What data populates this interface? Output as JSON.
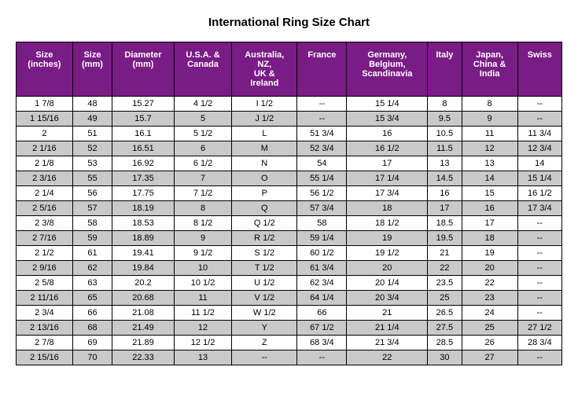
{
  "title": "International Ring Size Chart",
  "header_bg": "#7a1c85",
  "header_fg": "#ffffff",
  "stripe_bg": "#c9c9c9",
  "columns": [
    "Size (inches)",
    "Size (mm)",
    "Diameter (mm)",
    "U.S.A. & Canada",
    "Australia, NZ, UK & Ireland",
    "France",
    "Germany, Belgium, Scandinavia",
    "Italy",
    "Japan, China & India",
    "Swiss"
  ],
  "rows": [
    [
      "1  7/8",
      "48",
      "15.27",
      "4  1/2",
      "I  1/2",
      "--",
      "15  1/4",
      "8",
      "8",
      "--"
    ],
    [
      "1 15/16",
      "49",
      "15.7",
      "5",
      "J  1/2",
      "--",
      "15  3/4",
      "9.5",
      "9",
      "--"
    ],
    [
      "2",
      "51",
      "16.1",
      "5  1/2",
      "L",
      "51  3/4",
      "16",
      "10.5",
      "11",
      "11  3/4"
    ],
    [
      "2  1/16",
      "52",
      "16.51",
      "6",
      "M",
      "52  3/4",
      "16  1/2",
      "11.5",
      "12",
      "12  3/4"
    ],
    [
      "2  1/8",
      "53",
      "16.92",
      "6  1/2",
      "N",
      "54",
      "17",
      "13",
      "13",
      "14"
    ],
    [
      "2  3/16",
      "55",
      "17.35",
      "7",
      "O",
      "55  1/4",
      "17  1/4",
      "14.5",
      "14",
      "15  1/4"
    ],
    [
      "2  1/4",
      "56",
      "17.75",
      "7  1/2",
      "P",
      "56  1/2",
      "17  3/4",
      "16",
      "15",
      "16  1/2"
    ],
    [
      "2  5/16",
      "57",
      "18.19",
      "8",
      "Q",
      "57  3/4",
      "18",
      "17",
      "16",
      "17  3/4"
    ],
    [
      "2  3/8",
      "58",
      "18.53",
      "8  1/2",
      "Q  1/2",
      "58",
      "18  1/2",
      "18.5",
      "17",
      "--"
    ],
    [
      "2  7/16",
      "59",
      "18.89",
      "9",
      "R  1/2",
      "59  1/4",
      "19",
      "19.5",
      "18",
      "--"
    ],
    [
      "2  1/2",
      "61",
      "19.41",
      "9  1/2",
      "S  1/2",
      "60  1/2",
      "19  1/2",
      "21",
      "19",
      "--"
    ],
    [
      "2  9/16",
      "62",
      "19.84",
      "10",
      "T  1/2",
      "61  3/4",
      "20",
      "22",
      "20",
      "--"
    ],
    [
      "2  5/8",
      "63",
      "20.2",
      "10  1/2",
      "U  1/2",
      "62  3/4",
      "20  1/4",
      "23.5",
      "22",
      "--"
    ],
    [
      "2 11/16",
      "65",
      "20.68",
      "11",
      "V  1/2",
      "64  1/4",
      "20  3/4",
      "25",
      "23",
      "--"
    ],
    [
      "2  3/4",
      "66",
      "21.08",
      "11  1/2",
      "W  1/2",
      "66",
      "21",
      "26.5",
      "24",
      "--"
    ],
    [
      "2 13/16",
      "68",
      "21.49",
      "12",
      "Y",
      "67  1/2",
      "21  1/4",
      "27.5",
      "25",
      "27  1/2"
    ],
    [
      "2  7/8",
      "69",
      "21.89",
      "12  1/2",
      "Z",
      "68  3/4",
      "21  3/4",
      "28.5",
      "26",
      "28  3/4"
    ],
    [
      "2 15/16",
      "70",
      "22.33",
      "13",
      "--",
      "--",
      "22",
      "30",
      "27",
      "--"
    ]
  ]
}
